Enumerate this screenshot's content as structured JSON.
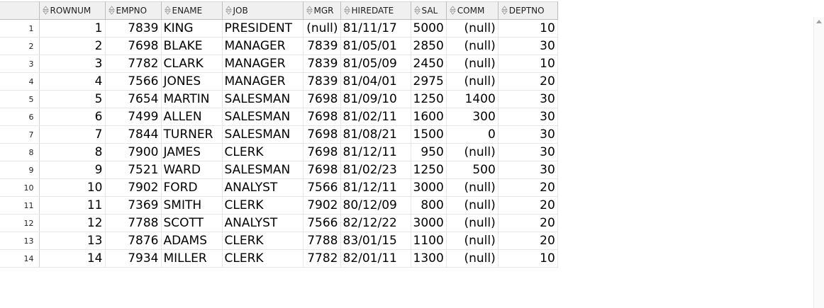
{
  "columns": [
    {
      "key": "ROWNUM",
      "label": "ROWNUM",
      "align": "num"
    },
    {
      "key": "EMPNO",
      "label": "EMPNO",
      "align": "num"
    },
    {
      "key": "ENAME",
      "label": "ENAME",
      "align": "txt"
    },
    {
      "key": "JOB",
      "label": "JOB",
      "align": "txt"
    },
    {
      "key": "MGR",
      "label": "MGR",
      "align": "num"
    },
    {
      "key": "HIREDATE",
      "label": "HIREDATE",
      "align": "txt"
    },
    {
      "key": "SAL",
      "label": "SAL",
      "align": "num"
    },
    {
      "key": "COMM",
      "label": "COMM",
      "align": "num"
    },
    {
      "key": "DEPTNO",
      "label": "DEPTNO",
      "align": "num"
    }
  ],
  "rows": [
    {
      "n": "1",
      "cells": [
        "1",
        "7839",
        "KING",
        "PRESIDENT",
        "(null)",
        "81/11/17",
        "5000",
        "(null)",
        "10"
      ]
    },
    {
      "n": "2",
      "cells": [
        "2",
        "7698",
        "BLAKE",
        "MANAGER",
        "7839",
        "81/05/01",
        "2850",
        "(null)",
        "30"
      ]
    },
    {
      "n": "3",
      "cells": [
        "3",
        "7782",
        "CLARK",
        "MANAGER",
        "7839",
        "81/05/09",
        "2450",
        "(null)",
        "10"
      ]
    },
    {
      "n": "4",
      "cells": [
        "4",
        "7566",
        "JONES",
        "MANAGER",
        "7839",
        "81/04/01",
        "2975",
        "(null)",
        "20"
      ]
    },
    {
      "n": "5",
      "cells": [
        "5",
        "7654",
        "MARTIN",
        "SALESMAN",
        "7698",
        "81/09/10",
        "1250",
        "1400",
        "30"
      ]
    },
    {
      "n": "6",
      "cells": [
        "6",
        "7499",
        "ALLEN",
        "SALESMAN",
        "7698",
        "81/02/11",
        "1600",
        "300",
        "30"
      ]
    },
    {
      "n": "7",
      "cells": [
        "7",
        "7844",
        "TURNER",
        "SALESMAN",
        "7698",
        "81/08/21",
        "1500",
        "0",
        "30"
      ]
    },
    {
      "n": "8",
      "cells": [
        "8",
        "7900",
        "JAMES",
        "CLERK",
        "7698",
        "81/12/11",
        "950",
        "(null)",
        "30"
      ]
    },
    {
      "n": "9",
      "cells": [
        "9",
        "7521",
        "WARD",
        "SALESMAN",
        "7698",
        "81/02/23",
        "1250",
        "500",
        "30"
      ]
    },
    {
      "n": "10",
      "cells": [
        "10",
        "7902",
        "FORD",
        "ANALYST",
        "7566",
        "81/12/11",
        "3000",
        "(null)",
        "20"
      ]
    },
    {
      "n": "11",
      "cells": [
        "11",
        "7369",
        "SMITH",
        "CLERK",
        "7902",
        "80/12/09",
        "800",
        "(null)",
        "20"
      ]
    },
    {
      "n": "12",
      "cells": [
        "12",
        "7788",
        "SCOTT",
        "ANALYST",
        "7566",
        "82/12/22",
        "3000",
        "(null)",
        "20"
      ]
    },
    {
      "n": "13",
      "cells": [
        "13",
        "7876",
        "ADAMS",
        "CLERK",
        "7788",
        "83/01/15",
        "1100",
        "(null)",
        "20"
      ]
    },
    {
      "n": "14",
      "cells": [
        "14",
        "7934",
        "MILLER",
        "CLERK",
        "7782",
        "82/01/11",
        "1300",
        "(null)",
        "10"
      ]
    }
  ],
  "icons": {
    "sort": "sort-toggle-icon",
    "scroll_up": "scroll-up-arrow-icon"
  }
}
